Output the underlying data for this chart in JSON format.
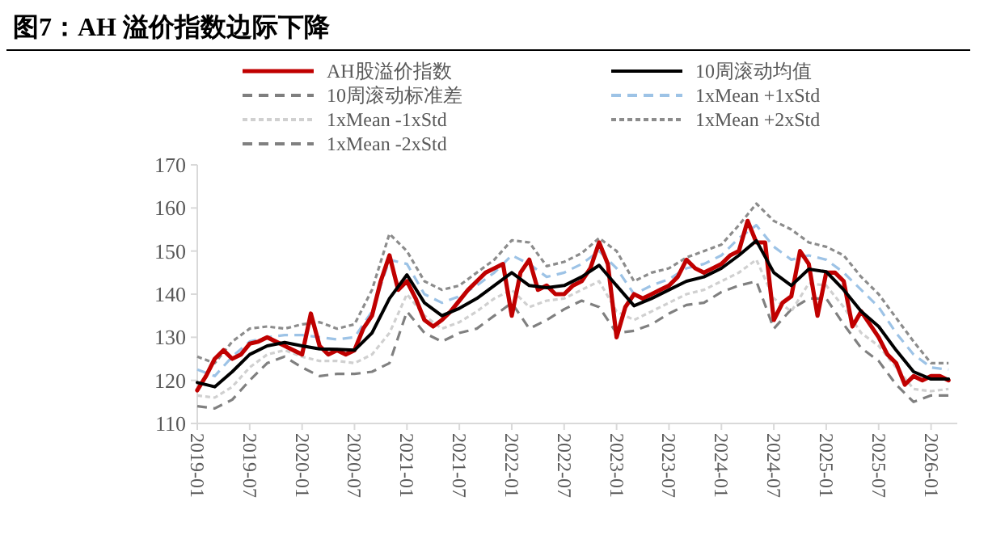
{
  "chart_data": {
    "type": "line",
    "title": "图7：AH 溢价指数边际下降",
    "legend": "top",
    "x": [
      "2019-01",
      "2019-03",
      "2019-05",
      "2019-07",
      "2019-09",
      "2019-11",
      "2020-01",
      "2020-03",
      "2020-05",
      "2020-07",
      "2020-09",
      "2020-11",
      "2021-01",
      "2021-03",
      "2021-05",
      "2021-07",
      "2021-09",
      "2021-11",
      "2022-01",
      "2022-03",
      "2022-05",
      "2022-07",
      "2022-09",
      "2022-11",
      "2023-01",
      "2023-03",
      "2023-05",
      "2023-07",
      "2023-09",
      "2023-11",
      "2024-01",
      "2024-03",
      "2024-05",
      "2024-07",
      "2024-09",
      "2024-11",
      "2025-01",
      "2025-03",
      "2025-05",
      "2025-07",
      "2025-09",
      "2025-11",
      "2026-01",
      "2026-03"
    ],
    "xlim": [
      "2019-01",
      "2026-04"
    ],
    "xticks": [
      "2019-01",
      "2019-07",
      "2020-01",
      "2020-07",
      "2021-01",
      "2021-07",
      "2022-01",
      "2022-07",
      "2023-01",
      "2023-07",
      "2024-01",
      "2024-07",
      "2025-01",
      "2025-07",
      "2026-01"
    ],
    "ylim": [
      110,
      170
    ],
    "yticks": [
      110,
      120,
      130,
      140,
      150,
      160,
      170
    ],
    "series": [
      {
        "name": "AH股溢价指数",
        "color": "#c00000",
        "line_style": "solid",
        "x": [
          "2019-01",
          "2019-02",
          "2019-03",
          "2019-04",
          "2019-05",
          "2019-06",
          "2019-07",
          "2019-08",
          "2019-09",
          "2019-10",
          "2019-11",
          "2019-12",
          "2020-01",
          "2020-02",
          "2020-03",
          "2020-04",
          "2020-05",
          "2020-06",
          "2020-07",
          "2020-08",
          "2020-09",
          "2020-10",
          "2020-11",
          "2020-12",
          "2021-01",
          "2021-02",
          "2021-03",
          "2021-04",
          "2021-05",
          "2021-06",
          "2021-07",
          "2021-08",
          "2021-09",
          "2021-10",
          "2021-11",
          "2021-12",
          "2022-01",
          "2022-02",
          "2022-03",
          "2022-04",
          "2022-05",
          "2022-06",
          "2022-07",
          "2022-08",
          "2022-09",
          "2022-10",
          "2022-11",
          "2022-12",
          "2023-01",
          "2023-02",
          "2023-03",
          "2023-04",
          "2023-05",
          "2023-06",
          "2023-07",
          "2023-08",
          "2023-09",
          "2023-10",
          "2023-11",
          "2023-12",
          "2024-01",
          "2024-02",
          "2024-03",
          "2024-04",
          "2024-05",
          "2024-06",
          "2024-07",
          "2024-08",
          "2024-09",
          "2024-10",
          "2024-11",
          "2024-12",
          "2025-01",
          "2025-02",
          "2025-03",
          "2025-04",
          "2025-05",
          "2025-06",
          "2025-07",
          "2025-08",
          "2025-09",
          "2025-10",
          "2025-11",
          "2025-12",
          "2026-01",
          "2026-02",
          "2026-03"
        ],
        "values": [
          117.7,
          121,
          125,
          127,
          125,
          126,
          128.5,
          129,
          130,
          129,
          128,
          127,
          126,
          135.5,
          128,
          126,
          127,
          126,
          127,
          132,
          135,
          143,
          149,
          141,
          143,
          139,
          134,
          132.5,
          134,
          136,
          138.5,
          141,
          143,
          145,
          146,
          147,
          135,
          145,
          148,
          141,
          142,
          140,
          140,
          142,
          143,
          146,
          152,
          147,
          130,
          137,
          140,
          139,
          140,
          141,
          142,
          144,
          148,
          146,
          145,
          146,
          147,
          149,
          150,
          157,
          152,
          152,
          134,
          138,
          139.5,
          150,
          147,
          135,
          145,
          145,
          143,
          132.5,
          136,
          133,
          130,
          126,
          124,
          119,
          121,
          120,
          121,
          121,
          120
        ]
      },
      {
        "name": "10周滚动均值",
        "color": "#000000",
        "line_style": "solid",
        "values": [
          119.5,
          118.5,
          122,
          126,
          128,
          128.8,
          128,
          127.3,
          127.2,
          127,
          131,
          139,
          144.5,
          138,
          135,
          136.7,
          139,
          142,
          145,
          142,
          141.5,
          142,
          144,
          146.7,
          142,
          137.3,
          139,
          141,
          143,
          144,
          146,
          149,
          152.4,
          145,
          142,
          145.8,
          145.2,
          141,
          136,
          132.5,
          127,
          122,
          120.3,
          120.3
        ]
      },
      {
        "name": "10周滚动标准差",
        "color": "#7f7f7f",
        "line_style": "dashed",
        "values": [
          null,
          null,
          null,
          null,
          null,
          null,
          null,
          null,
          null,
          null,
          null,
          null,
          null,
          null,
          null,
          null,
          null,
          null,
          null,
          null,
          null,
          null,
          null,
          null,
          null,
          null,
          null,
          null,
          null,
          null,
          null,
          null,
          null,
          null,
          null,
          null,
          null,
          null,
          null,
          null,
          null,
          null,
          null,
          null
        ]
      },
      {
        "name": "1xMean +1xStd",
        "color": "#9dc3e6",
        "line_style": "dashed",
        "values": [
          122.5,
          121,
          125.5,
          129,
          130,
          130.5,
          130.5,
          130,
          129.5,
          130,
          136,
          148,
          147,
          140,
          138,
          139.5,
          142,
          145,
          149,
          147,
          144,
          145,
          147,
          150,
          146,
          140,
          142,
          143.5,
          146,
          147,
          149,
          153,
          156,
          151,
          148,
          149,
          148,
          145,
          141,
          137,
          131,
          126,
          123,
          122.5
        ]
      },
      {
        "name": "1xMean -1xStd",
        "color": "#d0d0d0",
        "line_style": "dotted",
        "values": [
          116.5,
          116,
          118.5,
          123,
          126,
          127,
          125.5,
          124.5,
          124.5,
          124,
          126,
          131,
          140,
          135,
          132,
          133.5,
          136,
          139,
          141,
          137,
          138.5,
          139,
          141,
          143,
          136,
          134,
          136,
          138,
          140,
          141,
          143,
          145,
          148,
          139,
          136,
          142.5,
          142,
          137,
          131,
          128,
          123,
          118,
          117.5,
          118
        ]
      },
      {
        "name": "1xMean +2xStd",
        "color": "#8c8c8c",
        "line_style": "dotted",
        "values": [
          125.5,
          124,
          129,
          132,
          132.5,
          132,
          133,
          133.5,
          132,
          133,
          141,
          154,
          150,
          143,
          141,
          142,
          145,
          148,
          152.5,
          152,
          146.5,
          147.5,
          149.5,
          153,
          150,
          143,
          145,
          146,
          148.5,
          150,
          151.5,
          156,
          161,
          157,
          155,
          152,
          151,
          149,
          144,
          140,
          134.5,
          129,
          124,
          124
        ]
      },
      {
        "name": "1xMean -2xStd",
        "color": "#808080",
        "line_style": "dashed",
        "values": [
          114,
          113.5,
          115.5,
          120,
          124,
          125.5,
          123,
          121,
          121.5,
          121.5,
          122,
          124,
          136,
          131,
          129,
          131,
          132,
          135,
          138,
          132,
          134,
          136.5,
          138.5,
          137,
          131,
          131.5,
          133,
          135.5,
          137.5,
          138,
          140.5,
          142,
          143,
          132,
          136.5,
          139,
          139,
          133,
          127.5,
          124.5,
          119,
          115,
          116.5,
          116.5
        ]
      }
    ]
  }
}
